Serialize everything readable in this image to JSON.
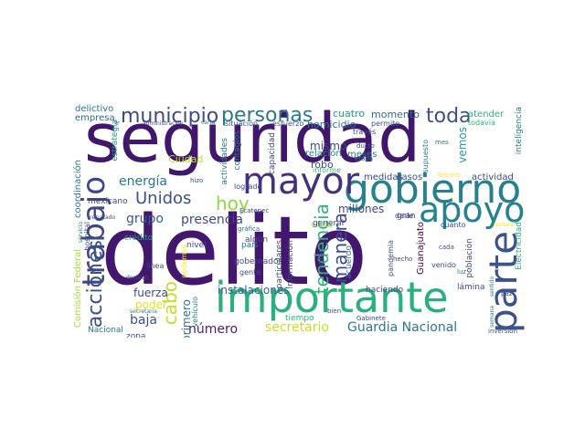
{
  "words": [
    {
      "text": "seguridad",
      "color": "#40176b"
    },
    {
      "text": "delito",
      "color": "#44176e"
    },
    {
      "text": "importante",
      "color": "#2ab07f"
    },
    {
      "text": "gobierno",
      "color": "#27808e"
    },
    {
      "text": "mayor",
      "color": "#46317e"
    },
    {
      "text": "parte",
      "color": "#3b528b"
    },
    {
      "text": "apoyo",
      "color": "#26838e"
    },
    {
      "text": "trabajo",
      "color": "#3f4788"
    },
    {
      "text": "municipio",
      "color": "#3f4989"
    },
    {
      "text": "personas",
      "color": "#2a788e"
    },
    {
      "text": "toda",
      "color": "#3b528b"
    },
    {
      "text": "acciones",
      "color": "#3b528b"
    },
    {
      "text": "Unidos",
      "color": "#3b518b"
    },
    {
      "text": "tendencia",
      "color": "#2fb47c"
    },
    {
      "text": "manera",
      "color": "#3e4a89"
    },
    {
      "text": "hoy",
      "color": "#8fd744"
    },
    {
      "text": "cabo",
      "color": "#c2df23"
    },
    {
      "text": "presencia",
      "color": "#3e4a89"
    },
    {
      "text": "energía",
      "color": "#2a788e"
    },
    {
      "text": "grupo",
      "color": "#375a8c"
    },
    {
      "text": "baja",
      "color": "#3b528b"
    },
    {
      "text": "Guardia Nacional",
      "color": "#2a788e"
    },
    {
      "text": "secretario",
      "color": "#c8e020"
    },
    {
      "text": "número",
      "color": "#481f70"
    },
    {
      "text": "instalaciones",
      "color": "#33638d"
    },
    {
      "text": "vemos",
      "color": "#1f9e89"
    },
    {
      "text": "fuerza",
      "color": "#3e4a89"
    },
    {
      "text": "poder",
      "color": "#e3e418"
    },
    {
      "text": "primero",
      "color": "#2d718e"
    },
    {
      "text": "mismo",
      "color": "#404688"
    },
    {
      "text": "millones",
      "color": "#3e4989"
    },
    {
      "text": "momento",
      "color": "#2f6b8e"
    },
    {
      "text": "cuatro",
      "color": "#1f9e89"
    },
    {
      "text": "homicidio",
      "color": "#2a788e"
    },
    {
      "text": "Ciudad",
      "color": "#bddf26"
    },
    {
      "text": "robo",
      "color": "#3e4a89"
    },
    {
      "text": "relación",
      "color": "#238a8d"
    },
    {
      "text": "meses",
      "color": "#26828e"
    },
    {
      "text": "atender",
      "color": "#2db27d"
    },
    {
      "text": "medidas",
      "color": "#3e4a89"
    },
    {
      "text": "casos",
      "color": "#3b528b"
    },
    {
      "text": "actividad",
      "color": "#3e4a89"
    },
    {
      "text": "empresa",
      "color": "#32658e"
    },
    {
      "text": "delictivo",
      "color": "#2a788e"
    },
    {
      "text": "situación",
      "color": "#3b528b"
    },
    {
      "text": "esfuerzo",
      "color": "#3b528b"
    },
    {
      "text": "permite",
      "color": "#3b528b"
    },
    {
      "text": "todavía",
      "color": "#2db27d"
    },
    {
      "text": "inteligencia",
      "color": "#2a788e"
    },
    {
      "text": "estrategia",
      "color": "#1fa187"
    },
    {
      "text": "Comisión Federal",
      "color": "#a5db36"
    },
    {
      "text": "coordinación",
      "color": "#2a788e"
    },
    {
      "text": "mexicano",
      "color": "#3e4a89"
    },
    {
      "text": "crédito",
      "color": "#1f9e89"
    },
    {
      "text": "zona",
      "color": "#3e4a89"
    },
    {
      "text": "nivel",
      "color": "#3e4a89"
    },
    {
      "text": "actividades",
      "color": "#2a788e"
    },
    {
      "text": "contagios",
      "color": "#2a788e"
    },
    {
      "text": "capacidad",
      "color": "#3e4a89"
    },
    {
      "text": "tiempo",
      "color": "#2db27d"
    },
    {
      "text": "visita",
      "color": "#a5db36"
    },
    {
      "text": "general",
      "color": "#3e4a89"
    },
    {
      "text": "gran",
      "color": "#3e4a89"
    },
    {
      "text": "informe",
      "color": "#35b779"
    },
    {
      "text": "logrado",
      "color": "#3e4a89"
    },
    {
      "text": "algún",
      "color": "#3e4a89"
    },
    {
      "text": "país",
      "color": "#2a788e"
    },
    {
      "text": "gobernador",
      "color": "#3e4a89"
    },
    {
      "text": "gente",
      "color": "#3e4a89"
    },
    {
      "text": "particulares",
      "color": "#3e4a89"
    },
    {
      "text": "información",
      "color": "#3e4a89"
    },
    {
      "text": "plan",
      "color": "#3e4a89"
    },
    {
      "text": "acuerdo",
      "color": "#2a788e"
    },
    {
      "text": "haciendo",
      "color": "#3e4a89"
    },
    {
      "text": "Guanajuato",
      "color": "#440154"
    },
    {
      "text": "pandemia",
      "color": "#3e4a89"
    },
    {
      "text": "cuanto",
      "color": "#3e4a89"
    },
    {
      "text": "población",
      "color": "#3e4a89"
    },
    {
      "text": "Electricidad",
      "color": "#2db27d"
    },
    {
      "text": "lámina",
      "color": "#3e4a89"
    },
    {
      "text": "darle",
      "color": "#3e4a89"
    },
    {
      "text": "vehículo",
      "color": "#2a788e"
    },
    {
      "text": "Nacional",
      "color": "#2a788e"
    },
    {
      "text": "podemos",
      "color": "#fde725"
    },
    {
      "text": "línea",
      "color": "#3e4a89"
    },
    {
      "text": "hospital",
      "color": "#3e4a89"
    },
    {
      "text": "hizo",
      "color": "#3e4a89"
    },
    {
      "text": "Ecatepec",
      "color": "#3e4a89"
    },
    {
      "text": "Gabinete",
      "color": "#3e4a89"
    },
    {
      "text": "luz",
      "color": "#2a788e"
    },
    {
      "text": "venido",
      "color": "#3e4a89"
    },
    {
      "text": "hecho",
      "color": "#3e4a89"
    },
    {
      "text": "cada",
      "color": "#3e4a89"
    },
    {
      "text": "nueva",
      "color": "#fde725"
    },
    {
      "text": "paz",
      "color": "#3e4a89"
    },
    {
      "text": "inversión",
      "color": "#3e4a89"
    },
    {
      "text": "supuesto",
      "color": "#2a788e"
    },
    {
      "text": "mes",
      "color": "#2a788e"
    },
    {
      "text": "etapa",
      "color": "#2a788e"
    },
    {
      "text": "través",
      "color": "#3e4a89"
    },
    {
      "text": "ducto",
      "color": "#3e4a89"
    },
    {
      "text": "Tercero",
      "color": "#fde725"
    },
    {
      "text": "bien",
      "color": "#3e4a89"
    },
    {
      "text": "secretaria",
      "color": "#2a788e"
    },
    {
      "text": "decisión",
      "color": "#3e4a89"
    },
    {
      "text": "gráfica",
      "color": "#2a788e"
    },
    {
      "text": "resultado",
      "color": "#3e4a89"
    },
    {
      "text": "servicio",
      "color": "#2a788e"
    },
    {
      "text": "carta",
      "color": "#2a788e"
    },
    {
      "text": "administración",
      "color": "#3e4a89"
    },
    {
      "text": "ir",
      "color": "#3e4a89"
    },
    {
      "text": "semana",
      "color": "#2a788e"
    },
    {
      "text": "sentido",
      "color": "#2a788e"
    }
  ]
}
